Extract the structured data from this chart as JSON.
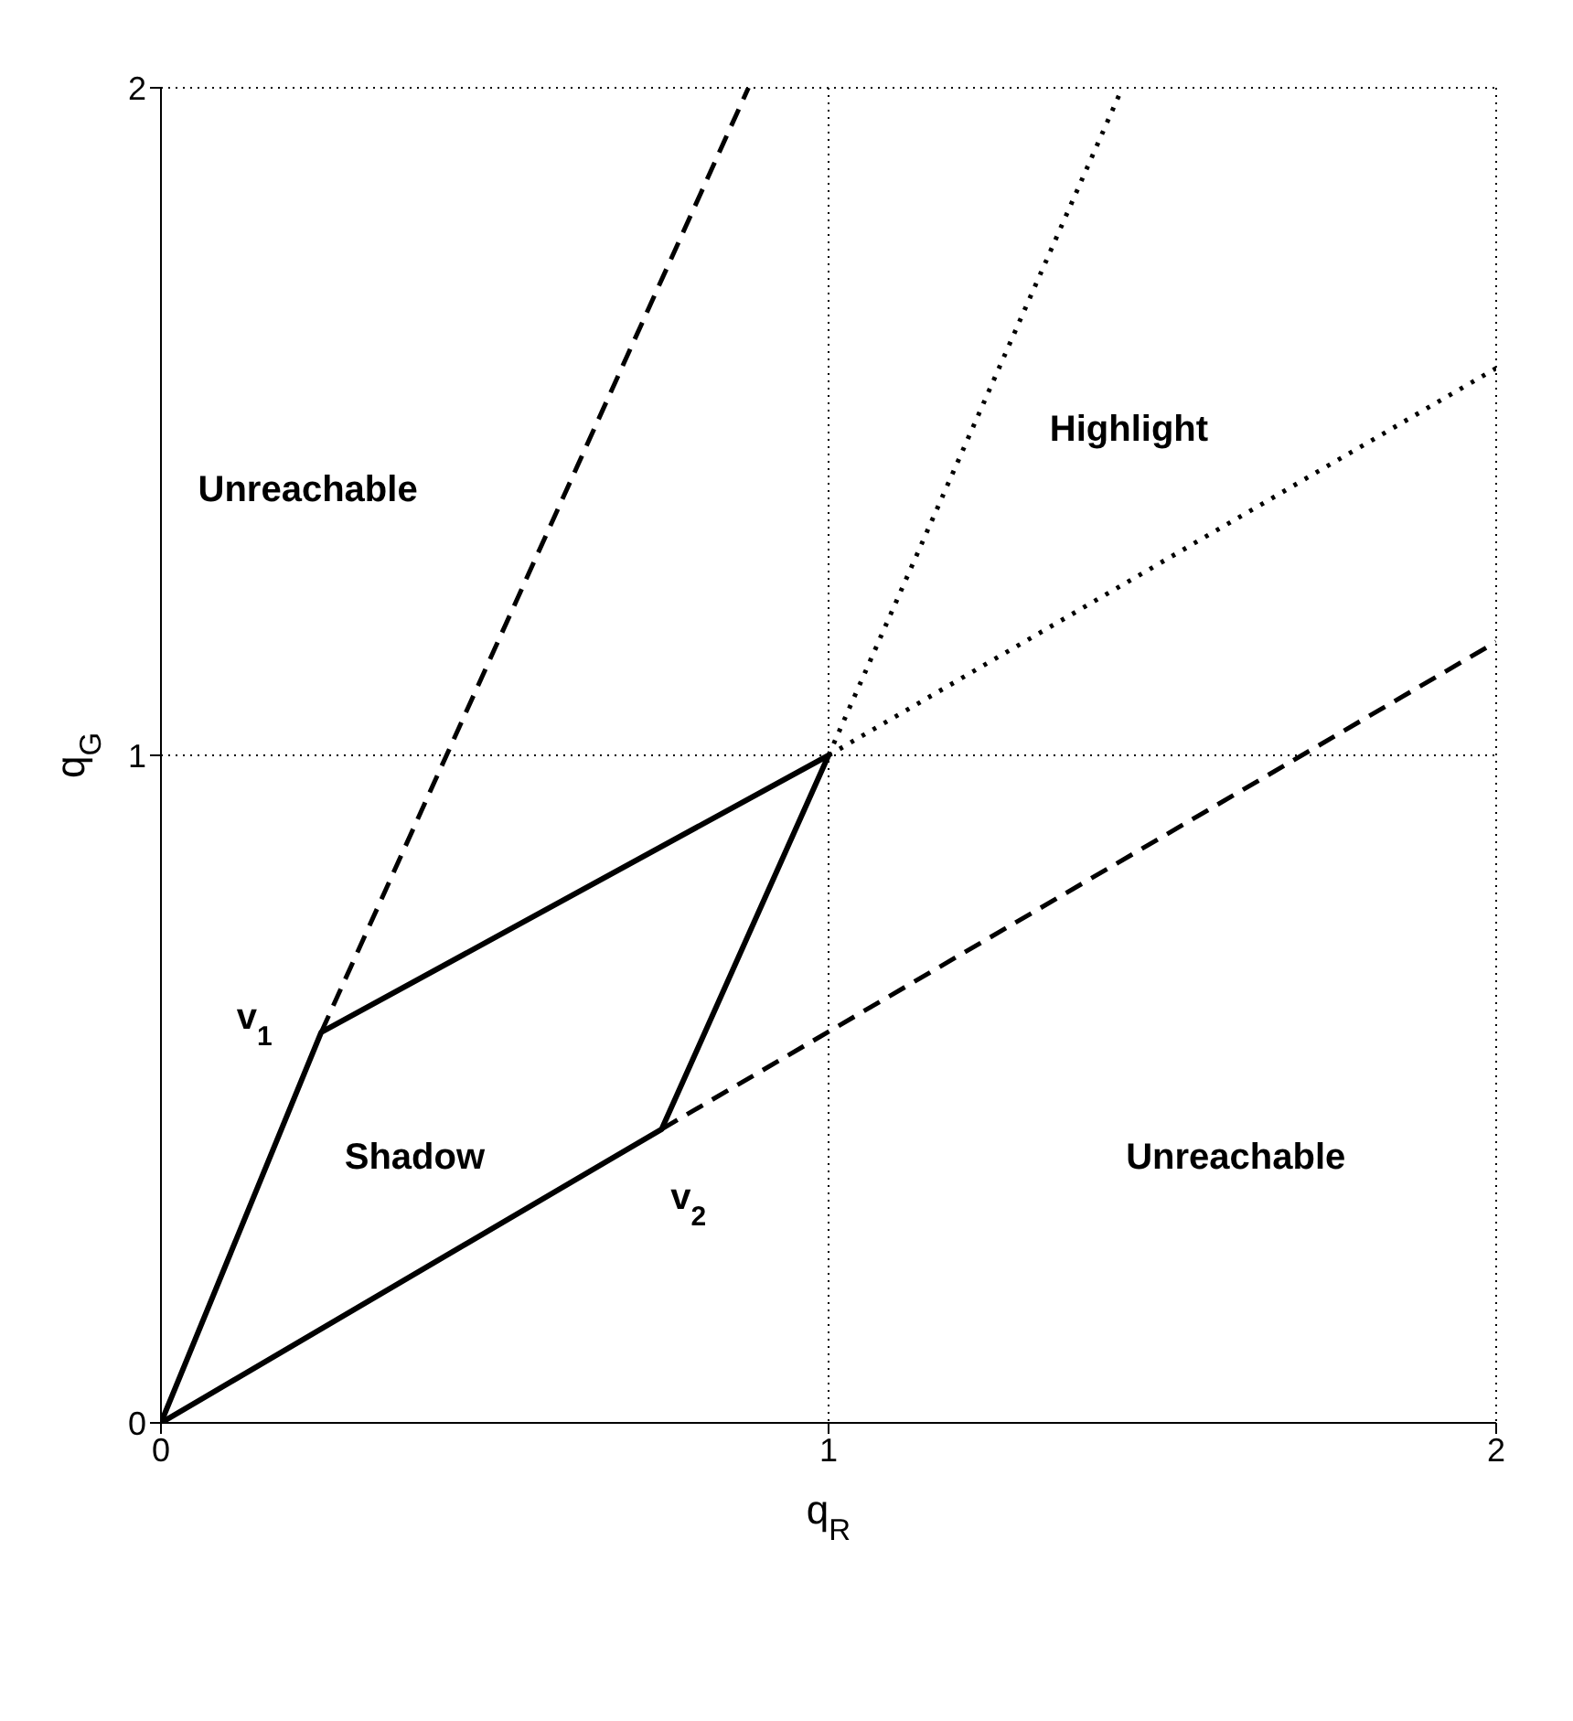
{
  "chart_data": {
    "type": "line",
    "xlabel": "q$_{R}$",
    "ylabel": "q$_{G}$",
    "xlim": [
      0,
      2
    ],
    "ylim": [
      0,
      2
    ],
    "xticks": [
      0,
      1,
      2
    ],
    "yticks": [
      0,
      1,
      2
    ],
    "grid": true,
    "marker": "none",
    "series": [
      {
        "color": "#000000",
        "line_style": "solid",
        "x": [
          0,
          0.24,
          1
        ],
        "values": [
          0,
          0.585,
          1
        ]
      },
      {
        "color": "#000000",
        "line_style": "solid",
        "x": [
          0,
          0.75,
          1
        ],
        "values": [
          0,
          0.44,
          1
        ]
      },
      {
        "color": "#000000",
        "line_style": "dashed",
        "x": [
          0.24,
          0.88
        ],
        "values": [
          0.585,
          2
        ]
      },
      {
        "color": "#000000",
        "line_style": "dashed",
        "x": [
          0.75,
          2
        ],
        "values": [
          0.44,
          1.17
        ]
      },
      {
        "color": "#000000",
        "line_style": "dotted",
        "x": [
          1,
          1.44
        ],
        "values": [
          1,
          2
        ]
      },
      {
        "color": "#000000",
        "line_style": "dotted",
        "x": [
          1,
          2
        ],
        "values": [
          1,
          1.58
        ]
      }
    ],
    "annotations": [
      "Unreachable",
      "Highlight",
      "Unreachable",
      "Shadow",
      "v$_{1}$",
      "v$_{2}$"
    ]
  }
}
